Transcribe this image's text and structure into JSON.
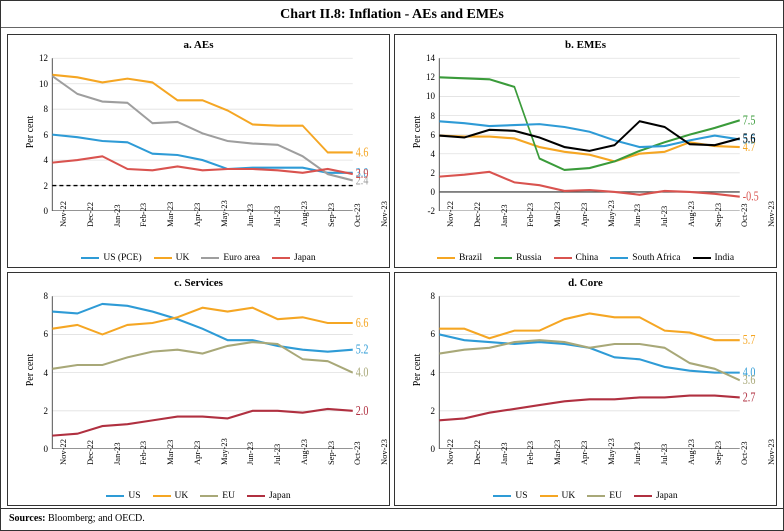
{
  "title": "Chart II.8: Inflation - AEs and EMEs",
  "sources_label": "Sources:",
  "sources_text": " Bloomberg; and OECD.",
  "ylabel": "Per cent",
  "x_labels": [
    "Nov-22",
    "Dec-22",
    "Jan-23",
    "Feb-23",
    "Mar-23",
    "Apr-23",
    "May-23",
    "Jun-23",
    "Jul-23",
    "Aug-23",
    "Sep-23",
    "Oct-23",
    "Nov-23"
  ],
  "colors": {
    "us": "#2e9bd6",
    "uk": "#f5a623",
    "euro": "#9e9e9e",
    "japan_a": "#d9534f",
    "brazil": "#f5a623",
    "russia": "#3a9b3a",
    "china": "#d9534f",
    "safrica": "#2e9bd6",
    "india": "#000000",
    "eu": "#a8a878",
    "japan_c": "#b03040",
    "grid": "#e0e0e0",
    "axis": "#555555"
  },
  "panels": {
    "a": {
      "title": "a. AEs",
      "ylim": [
        0,
        12
      ],
      "ytick_step": 2,
      "dashed_ref": 2,
      "series": [
        {
          "key": "us",
          "label": "US (PCE)",
          "color": "#2e9bd6",
          "data": [
            6.0,
            5.8,
            5.5,
            5.4,
            4.5,
            4.4,
            4.0,
            3.3,
            3.4,
            3.4,
            3.4,
            3.0,
            3.0
          ],
          "end": "3.0"
        },
        {
          "key": "uk",
          "label": "UK",
          "color": "#f5a623",
          "data": [
            10.7,
            10.5,
            10.1,
            10.4,
            10.1,
            8.7,
            8.7,
            7.9,
            6.8,
            6.7,
            6.7,
            4.6,
            4.6
          ],
          "end": "4.6"
        },
        {
          "key": "euro",
          "label": "Euro area",
          "color": "#9e9e9e",
          "data": [
            10.6,
            9.2,
            8.6,
            8.5,
            6.9,
            7.0,
            6.1,
            5.5,
            5.3,
            5.2,
            4.3,
            2.9,
            2.4
          ],
          "end": "2.4"
        },
        {
          "key": "japan",
          "label": "Japan",
          "color": "#d9534f",
          "data": [
            3.8,
            4.0,
            4.3,
            3.3,
            3.2,
            3.5,
            3.2,
            3.3,
            3.3,
            3.2,
            3.0,
            3.3,
            2.9
          ],
          "end": "2.9"
        }
      ]
    },
    "b": {
      "title": "b. EMEs",
      "ylim": [
        -2,
        14
      ],
      "ytick_step": 2,
      "series": [
        {
          "key": "brazil",
          "label": "Brazil",
          "color": "#f5a623",
          "data": [
            5.9,
            5.8,
            5.8,
            5.6,
            4.7,
            4.2,
            3.9,
            3.2,
            4.0,
            4.2,
            5.2,
            4.8,
            4.7
          ],
          "end": "4.7"
        },
        {
          "key": "russia",
          "label": "Russia",
          "color": "#3a9b3a",
          "data": [
            12.0,
            11.9,
            11.8,
            11.0,
            3.5,
            2.3,
            2.5,
            3.2,
            4.3,
            5.2,
            6.0,
            6.7,
            7.5
          ],
          "end": "7.5"
        },
        {
          "key": "china",
          "label": "China",
          "color": "#d9534f",
          "data": [
            1.6,
            1.8,
            2.1,
            1.0,
            0.7,
            0.1,
            0.2,
            0.0,
            -0.3,
            0.1,
            0.0,
            -0.2,
            -0.5
          ],
          "end": "-0.5"
        },
        {
          "key": "safrica",
          "label": "South Africa",
          "color": "#2e9bd6",
          "data": [
            7.4,
            7.2,
            6.9,
            7.0,
            7.1,
            6.8,
            6.3,
            5.4,
            4.7,
            4.8,
            5.4,
            5.9,
            5.5
          ],
          "end": "5.5"
        },
        {
          "key": "india",
          "label": "India",
          "color": "#000000",
          "data": [
            5.9,
            5.7,
            6.5,
            6.4,
            5.7,
            4.7,
            4.3,
            4.9,
            7.4,
            6.8,
            5.0,
            4.9,
            5.6
          ],
          "end": "5.6"
        }
      ]
    },
    "c": {
      "title": "c. Services",
      "ylim": [
        0,
        8
      ],
      "ytick_step": 2,
      "series": [
        {
          "key": "us",
          "label": "US",
          "color": "#2e9bd6",
          "data": [
            7.2,
            7.1,
            7.6,
            7.5,
            7.2,
            6.8,
            6.3,
            5.7,
            5.7,
            5.4,
            5.2,
            5.1,
            5.2
          ],
          "end": "5.2"
        },
        {
          "key": "uk",
          "label": "UK",
          "color": "#f5a623",
          "data": [
            6.3,
            6.5,
            6.0,
            6.5,
            6.6,
            6.9,
            7.4,
            7.2,
            7.4,
            6.8,
            6.9,
            6.6,
            6.6
          ],
          "end": "6.6"
        },
        {
          "key": "eu",
          "label": "EU",
          "color": "#a8a878",
          "data": [
            4.2,
            4.4,
            4.4,
            4.8,
            5.1,
            5.2,
            5.0,
            5.4,
            5.6,
            5.5,
            4.7,
            4.6,
            4.0
          ],
          "end": "4.0"
        },
        {
          "key": "japan",
          "label": "Japan",
          "color": "#b03040",
          "data": [
            0.7,
            0.8,
            1.2,
            1.3,
            1.5,
            1.7,
            1.7,
            1.6,
            2.0,
            2.0,
            1.9,
            2.1,
            2.0
          ],
          "end": "2.0"
        }
      ]
    },
    "d": {
      "title": "d. Core",
      "ylim": [
        0,
        8
      ],
      "ytick_step": 2,
      "series": [
        {
          "key": "us",
          "label": "US",
          "color": "#2e9bd6",
          "data": [
            6.0,
            5.7,
            5.6,
            5.5,
            5.6,
            5.5,
            5.3,
            4.8,
            4.7,
            4.3,
            4.1,
            4.0,
            4.0
          ],
          "end": "4.0"
        },
        {
          "key": "uk",
          "label": "UK",
          "color": "#f5a623",
          "data": [
            6.3,
            6.3,
            5.8,
            6.2,
            6.2,
            6.8,
            7.1,
            6.9,
            6.9,
            6.2,
            6.1,
            5.7,
            5.7
          ],
          "end": "5.7"
        },
        {
          "key": "eu",
          "label": "EU",
          "color": "#a8a878",
          "data": [
            5.0,
            5.2,
            5.3,
            5.6,
            5.7,
            5.6,
            5.3,
            5.5,
            5.5,
            5.3,
            4.5,
            4.2,
            3.6
          ],
          "end": "3.6"
        },
        {
          "key": "japan",
          "label": "Japan",
          "color": "#b03040",
          "data": [
            1.5,
            1.6,
            1.9,
            2.1,
            2.3,
            2.5,
            2.6,
            2.6,
            2.7,
            2.7,
            2.8,
            2.8,
            2.7
          ],
          "end": "2.7"
        }
      ]
    }
  }
}
